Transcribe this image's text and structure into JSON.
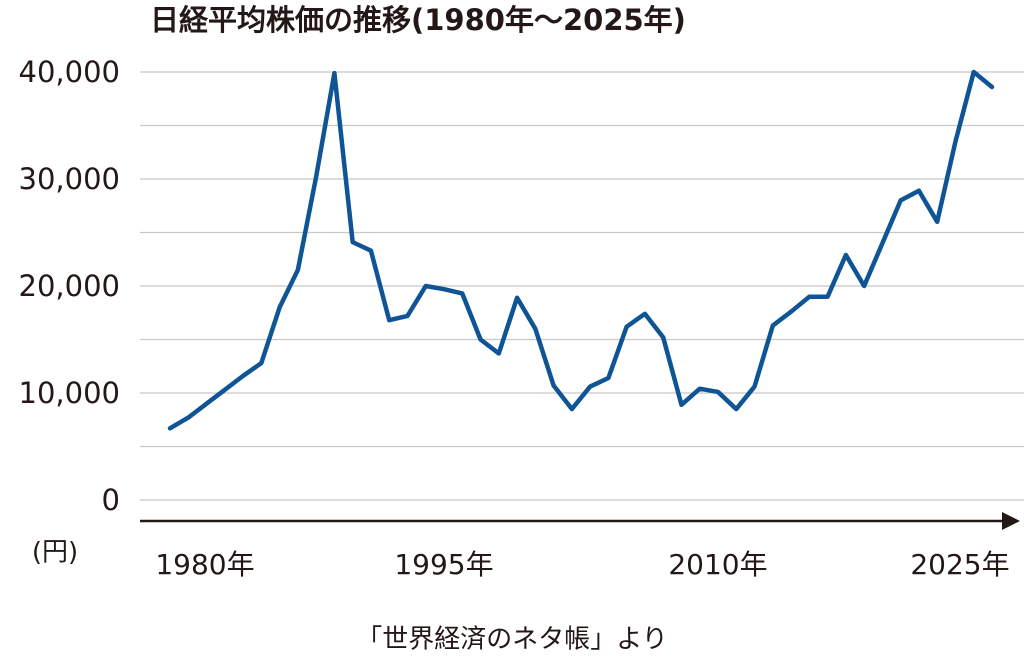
{
  "chart_data": {
    "type": "line",
    "title": "日経平均株価の推移(1980年～2025年)",
    "ylabel": "(円)",
    "source": "「世界経済のネタ帳」より",
    "x": [
      1980,
      1981,
      1982,
      1983,
      1984,
      1985,
      1986,
      1987,
      1988,
      1989,
      1990,
      1991,
      1992,
      1993,
      1994,
      1995,
      1996,
      1997,
      1998,
      1999,
      2000,
      2001,
      2002,
      2003,
      2004,
      2005,
      2006,
      2007,
      2008,
      2009,
      2010,
      2011,
      2012,
      2013,
      2014,
      2015,
      2016,
      2017,
      2018,
      2019,
      2020,
      2021,
      2022,
      2023,
      2024,
      2025
    ],
    "series": [
      {
        "name": "日経平均株価",
        "color": "#0f5596",
        "values": [
          6700,
          7700,
          9000,
          10300,
          11600,
          12800,
          18000,
          21500,
          30200,
          39900,
          24100,
          23300,
          16800,
          17200,
          20000,
          19700,
          19300,
          15000,
          13700,
          18900,
          16000,
          10700,
          8500,
          10600,
          11400,
          16200,
          17400,
          15200,
          8900,
          10400,
          10100,
          8500,
          10600,
          16300,
          17600,
          19000,
          19000,
          22900,
          20000,
          24000,
          28000,
          28900,
          26000,
          33500,
          40000,
          38600
        ]
      }
    ],
    "xlim": [
      1980,
      2025
    ],
    "xticks": [
      {
        "value": 1980,
        "label": "1980年"
      },
      {
        "value": 1995,
        "label": "1995年"
      },
      {
        "value": 2010,
        "label": "2010年"
      },
      {
        "value": 2025,
        "label": "2025年"
      }
    ],
    "ylim": [
      0,
      40000
    ],
    "yticks": [
      0,
      {
        "value": 10000,
        "label": "10,000"
      },
      {
        "value": 20000,
        "label": "20,000"
      },
      {
        "value": 30000,
        "label": "30,000"
      },
      {
        "value": 40000,
        "label": "40,000"
      }
    ],
    "ygrid": [
      0,
      5000,
      10000,
      15000,
      20000,
      25000,
      30000,
      35000,
      40000
    ]
  }
}
